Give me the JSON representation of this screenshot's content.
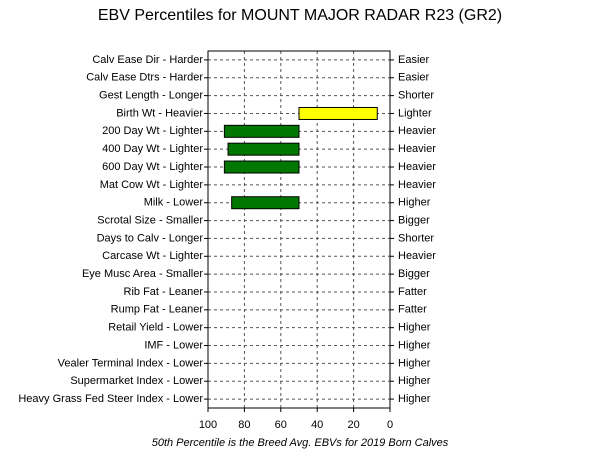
{
  "chart_data": {
    "type": "bar",
    "orientation": "horizontal",
    "title": "EBV Percentiles for MOUNT MAJOR RADAR R23 (GR2)",
    "footnote": "50th Percentile is the Breed Avg. EBVs for 2019 Born Calves",
    "categories": [
      "Calv Ease Dir - Harder",
      "Calv Ease Dtrs - Harder",
      "Gest Length - Longer",
      "Birth Wt - Heavier",
      "200 Day Wt - Lighter",
      "400 Day Wt - Lighter",
      "600 Day Wt - Lighter",
      "Mat Cow Wt - Lighter",
      "Milk - Lower",
      "Scrotal Size - Smaller",
      "Days to Calv - Longer",
      "Carcase Wt - Lighter",
      "Eye Musc Area - Smaller",
      "Rib Fat - Leaner",
      "Rump Fat - Leaner",
      "Retail Yield - Lower",
      "IMF - Lower",
      "Vealer Terminal Index - Lower",
      "Supermarket Index - Lower",
      "Heavy Grass Fed Steer Index - Lower"
    ],
    "right_labels": [
      "Easier",
      "Easier",
      "Shorter",
      "Lighter",
      "Heavier",
      "Heavier",
      "Heavier",
      "Heavier",
      "Higher",
      "Bigger",
      "Shorter",
      "Heavier",
      "Bigger",
      "Fatter",
      "Fatter",
      "Higher",
      "Higher",
      "Higher",
      "Higher",
      "Higher"
    ],
    "values": [
      null,
      null,
      null,
      7,
      91,
      89,
      91,
      null,
      87,
      null,
      null,
      null,
      null,
      null,
      null,
      null,
      null,
      null,
      null,
      null
    ],
    "base": 50,
    "bar_colors": [
      null,
      null,
      null,
      "#ffff00",
      "#007700",
      "#007700",
      "#007700",
      null,
      "#007700",
      null,
      null,
      null,
      null,
      null,
      null,
      null,
      null,
      null,
      null,
      null
    ],
    "xlim": [
      100,
      0
    ],
    "xticks": [
      100,
      80,
      60,
      40,
      20,
      0
    ],
    "grid": true,
    "title_color": "#0000cc",
    "footnote_color": "#cc0000"
  }
}
